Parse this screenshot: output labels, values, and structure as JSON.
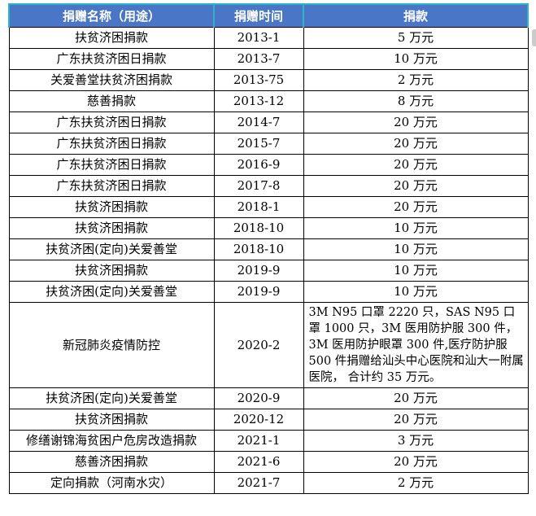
{
  "table": {
    "columns": [
      "捐赠名称（用途）",
      "捐赠时间",
      "捐款"
    ],
    "rows": [
      {
        "name": "扶贫济困捐款",
        "date": "2013-1",
        "amount": "5 万元"
      },
      {
        "name": "广东扶贫济困日捐款",
        "date": "2013-7",
        "amount": "10 万元"
      },
      {
        "name": "关爱善堂扶贫济困捐款",
        "date": "2013-75",
        "amount": "2 万元"
      },
      {
        "name": "慈善捐款",
        "date": "2013-12",
        "amount": "8 万元"
      },
      {
        "name": "广东扶贫济困日捐款",
        "date": "2014-7",
        "amount": "20 万元"
      },
      {
        "name": "广东扶贫济困日捐款",
        "date": "2015-7",
        "amount": "20 万元"
      },
      {
        "name": "广东扶贫济困日捐款",
        "date": "2016-9",
        "amount": "20 万元"
      },
      {
        "name": "广东扶贫济困日捐款",
        "date": "2017-8",
        "amount": "20 万元"
      },
      {
        "name": "扶贫济困捐款",
        "date": "2018-1",
        "amount": "20 万元"
      },
      {
        "name": "扶贫济困捐款",
        "date": "2018-10",
        "amount": "10 万元"
      },
      {
        "name": "扶贫济困(定向)关爱善堂",
        "date": "2018-10",
        "amount": "10 万元"
      },
      {
        "name": "扶贫济困捐款",
        "date": "2019-9",
        "amount": "10 万元"
      },
      {
        "name": "扶贫济困(定向)关爱善堂",
        "date": "2019-9",
        "amount": "10 万元"
      },
      {
        "name": "新冠肺炎疫情防控",
        "date": "2020-2",
        "amount": "3M N95 口罩 2220 只，SAS N95 口罩 1000 只，3M 医用防护服 300 件，3M 医用防护眼罩 300 件,医疗防护服 500 件捐赠给汕头中心医院和汕大一附属医院， 合计约 35 万元。"
      },
      {
        "name": "扶贫济困(定向)关爱善堂",
        "date": "2020-9",
        "amount": "20 万元"
      },
      {
        "name": "扶贫济困捐款",
        "date": "2020-12",
        "amount": "20 万元"
      },
      {
        "name": "修缮谢锦海贫困户危房改造捐款",
        "date": "2021-1",
        "amount": "3 万元"
      },
      {
        "name": "慈善济困捐款",
        "date": "2021-6",
        "amount": "20 万元"
      },
      {
        "name": "定向捐款（河南水灾）",
        "date": "2021-7",
        "amount": "2 万元"
      }
    ]
  },
  "colors": {
    "header_background": "#4a76c8",
    "header_text": "#ffffff",
    "header_outline": "#2db5c5",
    "cell_border": "#000000",
    "body_text": "#000000",
    "scrollbar_thumb": "#cbcbcb"
  }
}
